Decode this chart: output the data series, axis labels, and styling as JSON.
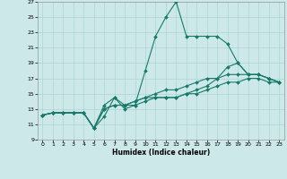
{
  "xlabel": "Humidex (Indice chaleur)",
  "bg_color": "#cce8e8",
  "grid_color": "#aad4d4",
  "line_color": "#1a7a6a",
  "xlim": [
    -0.5,
    23.5
  ],
  "ylim": [
    9,
    27
  ],
  "xticks": [
    0,
    1,
    2,
    3,
    4,
    5,
    6,
    7,
    8,
    9,
    10,
    11,
    12,
    13,
    14,
    15,
    16,
    17,
    18,
    19,
    20,
    21,
    22,
    23
  ],
  "yticks": [
    9,
    11,
    13,
    15,
    17,
    19,
    21,
    23,
    25,
    27
  ],
  "line1_x": [
    0,
    1,
    2,
    3,
    4,
    5,
    6,
    7,
    8,
    9,
    10,
    11,
    12,
    13,
    14,
    15,
    16,
    17,
    18,
    19,
    20,
    21,
    22,
    23
  ],
  "line1_y": [
    12.2,
    12.5,
    12.5,
    12.5,
    12.5,
    10.5,
    12.0,
    14.5,
    13.0,
    13.5,
    18.0,
    22.5,
    25.0,
    27.0,
    22.5,
    22.5,
    22.5,
    22.5,
    21.5,
    19.0,
    17.5,
    17.5,
    17.0,
    16.5
  ],
  "line2_x": [
    0,
    1,
    2,
    3,
    4,
    5,
    6,
    7,
    8,
    9,
    10,
    11,
    12,
    13,
    14,
    15,
    16,
    17,
    18,
    19,
    20,
    21,
    22,
    23
  ],
  "line2_y": [
    12.2,
    12.5,
    12.5,
    12.5,
    12.5,
    10.5,
    13.5,
    14.5,
    13.5,
    14.0,
    14.5,
    14.5,
    14.5,
    14.5,
    15.0,
    15.5,
    16.0,
    17.0,
    18.5,
    19.0,
    17.5,
    17.5,
    17.0,
    16.5
  ],
  "line3_x": [
    0,
    1,
    2,
    3,
    4,
    5,
    6,
    7,
    8,
    9,
    10,
    11,
    12,
    13,
    14,
    15,
    16,
    17,
    18,
    19,
    20,
    21,
    22,
    23
  ],
  "line3_y": [
    12.2,
    12.5,
    12.5,
    12.5,
    12.5,
    10.5,
    13.0,
    13.5,
    13.5,
    14.0,
    14.5,
    15.0,
    15.5,
    15.5,
    16.0,
    16.5,
    17.0,
    17.0,
    17.5,
    17.5,
    17.5,
    17.5,
    17.0,
    16.5
  ],
  "line4_x": [
    0,
    1,
    2,
    3,
    4,
    5,
    6,
    7,
    8,
    9,
    10,
    11,
    12,
    13,
    14,
    15,
    16,
    17,
    18,
    19,
    20,
    21,
    22,
    23
  ],
  "line4_y": [
    12.2,
    12.5,
    12.5,
    12.5,
    12.5,
    10.5,
    13.0,
    13.5,
    13.5,
    13.5,
    14.0,
    14.5,
    14.5,
    14.5,
    15.0,
    15.0,
    15.5,
    16.0,
    16.5,
    16.5,
    17.0,
    17.0,
    16.5,
    16.5
  ]
}
